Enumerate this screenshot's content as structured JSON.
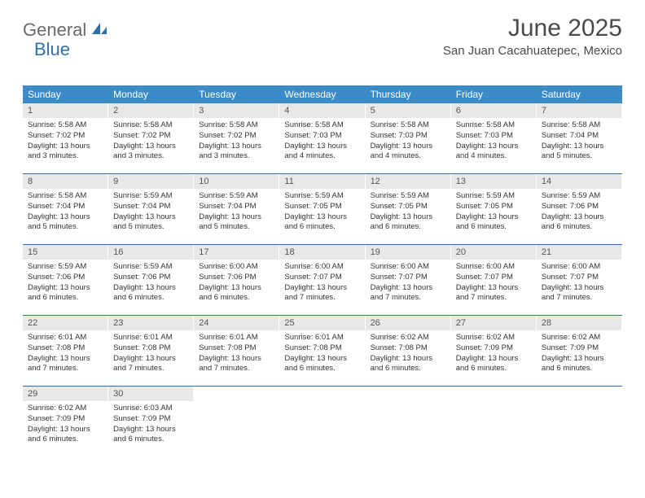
{
  "logo": {
    "part1": "General",
    "part2": "Blue"
  },
  "title": "June 2025",
  "location": "San Juan Cacahuatepec, Mexico",
  "colors": {
    "header_bg": "#3b8bc8",
    "header_text": "#ffffff",
    "daynum_bg": "#e8e8e8",
    "daynum_text": "#555555",
    "body_text": "#333333",
    "rule": "#2f6fb0",
    "logo_gray": "#6a6a6a",
    "logo_blue": "#2f6fb0"
  },
  "weekdays": [
    "Sunday",
    "Monday",
    "Tuesday",
    "Wednesday",
    "Thursday",
    "Friday",
    "Saturday"
  ],
  "weeks": [
    [
      {
        "n": "1",
        "sr": "Sunrise: 5:58 AM",
        "ss": "Sunset: 7:02 PM",
        "d1": "Daylight: 13 hours",
        "d2": "and 3 minutes."
      },
      {
        "n": "2",
        "sr": "Sunrise: 5:58 AM",
        "ss": "Sunset: 7:02 PM",
        "d1": "Daylight: 13 hours",
        "d2": "and 3 minutes."
      },
      {
        "n": "3",
        "sr": "Sunrise: 5:58 AM",
        "ss": "Sunset: 7:02 PM",
        "d1": "Daylight: 13 hours",
        "d2": "and 3 minutes."
      },
      {
        "n": "4",
        "sr": "Sunrise: 5:58 AM",
        "ss": "Sunset: 7:03 PM",
        "d1": "Daylight: 13 hours",
        "d2": "and 4 minutes."
      },
      {
        "n": "5",
        "sr": "Sunrise: 5:58 AM",
        "ss": "Sunset: 7:03 PM",
        "d1": "Daylight: 13 hours",
        "d2": "and 4 minutes."
      },
      {
        "n": "6",
        "sr": "Sunrise: 5:58 AM",
        "ss": "Sunset: 7:03 PM",
        "d1": "Daylight: 13 hours",
        "d2": "and 4 minutes."
      },
      {
        "n": "7",
        "sr": "Sunrise: 5:58 AM",
        "ss": "Sunset: 7:04 PM",
        "d1": "Daylight: 13 hours",
        "d2": "and 5 minutes."
      }
    ],
    [
      {
        "n": "8",
        "sr": "Sunrise: 5:58 AM",
        "ss": "Sunset: 7:04 PM",
        "d1": "Daylight: 13 hours",
        "d2": "and 5 minutes."
      },
      {
        "n": "9",
        "sr": "Sunrise: 5:59 AM",
        "ss": "Sunset: 7:04 PM",
        "d1": "Daylight: 13 hours",
        "d2": "and 5 minutes."
      },
      {
        "n": "10",
        "sr": "Sunrise: 5:59 AM",
        "ss": "Sunset: 7:04 PM",
        "d1": "Daylight: 13 hours",
        "d2": "and 5 minutes."
      },
      {
        "n": "11",
        "sr": "Sunrise: 5:59 AM",
        "ss": "Sunset: 7:05 PM",
        "d1": "Daylight: 13 hours",
        "d2": "and 6 minutes."
      },
      {
        "n": "12",
        "sr": "Sunrise: 5:59 AM",
        "ss": "Sunset: 7:05 PM",
        "d1": "Daylight: 13 hours",
        "d2": "and 6 minutes."
      },
      {
        "n": "13",
        "sr": "Sunrise: 5:59 AM",
        "ss": "Sunset: 7:05 PM",
        "d1": "Daylight: 13 hours",
        "d2": "and 6 minutes."
      },
      {
        "n": "14",
        "sr": "Sunrise: 5:59 AM",
        "ss": "Sunset: 7:06 PM",
        "d1": "Daylight: 13 hours",
        "d2": "and 6 minutes."
      }
    ],
    [
      {
        "n": "15",
        "sr": "Sunrise: 5:59 AM",
        "ss": "Sunset: 7:06 PM",
        "d1": "Daylight: 13 hours",
        "d2": "and 6 minutes."
      },
      {
        "n": "16",
        "sr": "Sunrise: 5:59 AM",
        "ss": "Sunset: 7:06 PM",
        "d1": "Daylight: 13 hours",
        "d2": "and 6 minutes."
      },
      {
        "n": "17",
        "sr": "Sunrise: 6:00 AM",
        "ss": "Sunset: 7:06 PM",
        "d1": "Daylight: 13 hours",
        "d2": "and 6 minutes."
      },
      {
        "n": "18",
        "sr": "Sunrise: 6:00 AM",
        "ss": "Sunset: 7:07 PM",
        "d1": "Daylight: 13 hours",
        "d2": "and 7 minutes."
      },
      {
        "n": "19",
        "sr": "Sunrise: 6:00 AM",
        "ss": "Sunset: 7:07 PM",
        "d1": "Daylight: 13 hours",
        "d2": "and 7 minutes."
      },
      {
        "n": "20",
        "sr": "Sunrise: 6:00 AM",
        "ss": "Sunset: 7:07 PM",
        "d1": "Daylight: 13 hours",
        "d2": "and 7 minutes."
      },
      {
        "n": "21",
        "sr": "Sunrise: 6:00 AM",
        "ss": "Sunset: 7:07 PM",
        "d1": "Daylight: 13 hours",
        "d2": "and 7 minutes."
      }
    ],
    [
      {
        "n": "22",
        "sr": "Sunrise: 6:01 AM",
        "ss": "Sunset: 7:08 PM",
        "d1": "Daylight: 13 hours",
        "d2": "and 7 minutes."
      },
      {
        "n": "23",
        "sr": "Sunrise: 6:01 AM",
        "ss": "Sunset: 7:08 PM",
        "d1": "Daylight: 13 hours",
        "d2": "and 7 minutes."
      },
      {
        "n": "24",
        "sr": "Sunrise: 6:01 AM",
        "ss": "Sunset: 7:08 PM",
        "d1": "Daylight: 13 hours",
        "d2": "and 7 minutes."
      },
      {
        "n": "25",
        "sr": "Sunrise: 6:01 AM",
        "ss": "Sunset: 7:08 PM",
        "d1": "Daylight: 13 hours",
        "d2": "and 6 minutes."
      },
      {
        "n": "26",
        "sr": "Sunrise: 6:02 AM",
        "ss": "Sunset: 7:08 PM",
        "d1": "Daylight: 13 hours",
        "d2": "and 6 minutes."
      },
      {
        "n": "27",
        "sr": "Sunrise: 6:02 AM",
        "ss": "Sunset: 7:09 PM",
        "d1": "Daylight: 13 hours",
        "d2": "and 6 minutes."
      },
      {
        "n": "28",
        "sr": "Sunrise: 6:02 AM",
        "ss": "Sunset: 7:09 PM",
        "d1": "Daylight: 13 hours",
        "d2": "and 6 minutes."
      }
    ],
    [
      {
        "n": "29",
        "sr": "Sunrise: 6:02 AM",
        "ss": "Sunset: 7:09 PM",
        "d1": "Daylight: 13 hours",
        "d2": "and 6 minutes."
      },
      {
        "n": "30",
        "sr": "Sunrise: 6:03 AM",
        "ss": "Sunset: 7:09 PM",
        "d1": "Daylight: 13 hours",
        "d2": "and 6 minutes."
      },
      null,
      null,
      null,
      null,
      null
    ]
  ]
}
